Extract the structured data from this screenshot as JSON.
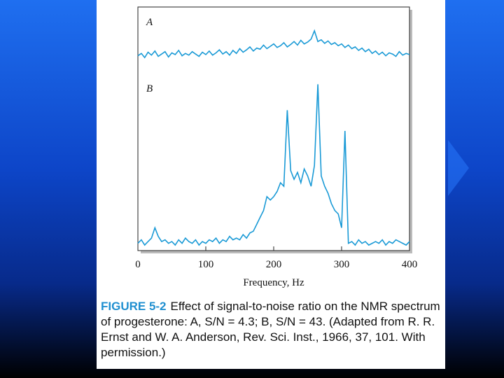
{
  "chart_data": {
    "type": "line",
    "x_label": "Frequency, Hz",
    "figure_label": "FIGURE 5-2",
    "caption": "Effect of signal-to-noise ratio on the NMR spectrum of progesterone: A, S/N = 4.3; B, S/N = 43. (Adapted from R. R. Ernst and W. A. Anderson, Rev. Sci. Inst., 1966, 37, 101. With permission.)",
    "xlim": [
      0,
      400
    ],
    "xticks": [
      0,
      100,
      200,
      300,
      400
    ],
    "ylim": [
      0,
      100
    ],
    "x": [
      0,
      5,
      10,
      15,
      20,
      25,
      30,
      35,
      40,
      45,
      50,
      55,
      60,
      65,
      70,
      75,
      80,
      85,
      90,
      95,
      100,
      105,
      110,
      115,
      120,
      125,
      130,
      135,
      140,
      145,
      150,
      155,
      160,
      165,
      170,
      175,
      180,
      185,
      190,
      195,
      200,
      205,
      210,
      215,
      220,
      225,
      230,
      235,
      240,
      245,
      250,
      255,
      260,
      265,
      270,
      275,
      280,
      285,
      290,
      295,
      300,
      305,
      310,
      315,
      320,
      325,
      330,
      335,
      340,
      345,
      350,
      355,
      360,
      365,
      370,
      375,
      380,
      385,
      390,
      395,
      400
    ],
    "series": [
      {
        "name": "A",
        "color": "#1a9ad6",
        "values": [
          18,
          22,
          15,
          24,
          19,
          26,
          17,
          21,
          25,
          16,
          23,
          20,
          27,
          18,
          22,
          19,
          25,
          21,
          17,
          24,
          20,
          26,
          19,
          23,
          28,
          21,
          25,
          19,
          27,
          22,
          30,
          24,
          28,
          33,
          26,
          31,
          29,
          36,
          30,
          34,
          38,
          32,
          35,
          40,
          33,
          37,
          42,
          36,
          44,
          38,
          41,
          46,
          60,
          42,
          45,
          39,
          43,
          37,
          40,
          35,
          38,
          32,
          36,
          30,
          33,
          27,
          31,
          25,
          29,
          22,
          26,
          20,
          24,
          18,
          23,
          21,
          17,
          25,
          19,
          22,
          20
        ]
      },
      {
        "name": "B",
        "color": "#1a9ad6",
        "values": [
          3,
          5,
          2,
          4,
          6,
          12,
          7,
          4,
          5,
          3,
          4,
          2,
          5,
          3,
          6,
          4,
          3,
          5,
          2,
          4,
          3,
          5,
          4,
          6,
          3,
          5,
          4,
          7,
          5,
          6,
          5,
          8,
          6,
          9,
          10,
          14,
          18,
          22,
          30,
          28,
          30,
          33,
          38,
          36,
          80,
          45,
          40,
          44,
          38,
          46,
          42,
          36,
          48,
          95,
          42,
          36,
          32,
          26,
          22,
          20,
          12,
          68,
          3,
          4,
          2,
          5,
          3,
          4,
          2,
          3,
          4,
          3,
          5,
          2,
          4,
          3,
          5,
          4,
          3,
          2,
          4
        ]
      }
    ]
  }
}
